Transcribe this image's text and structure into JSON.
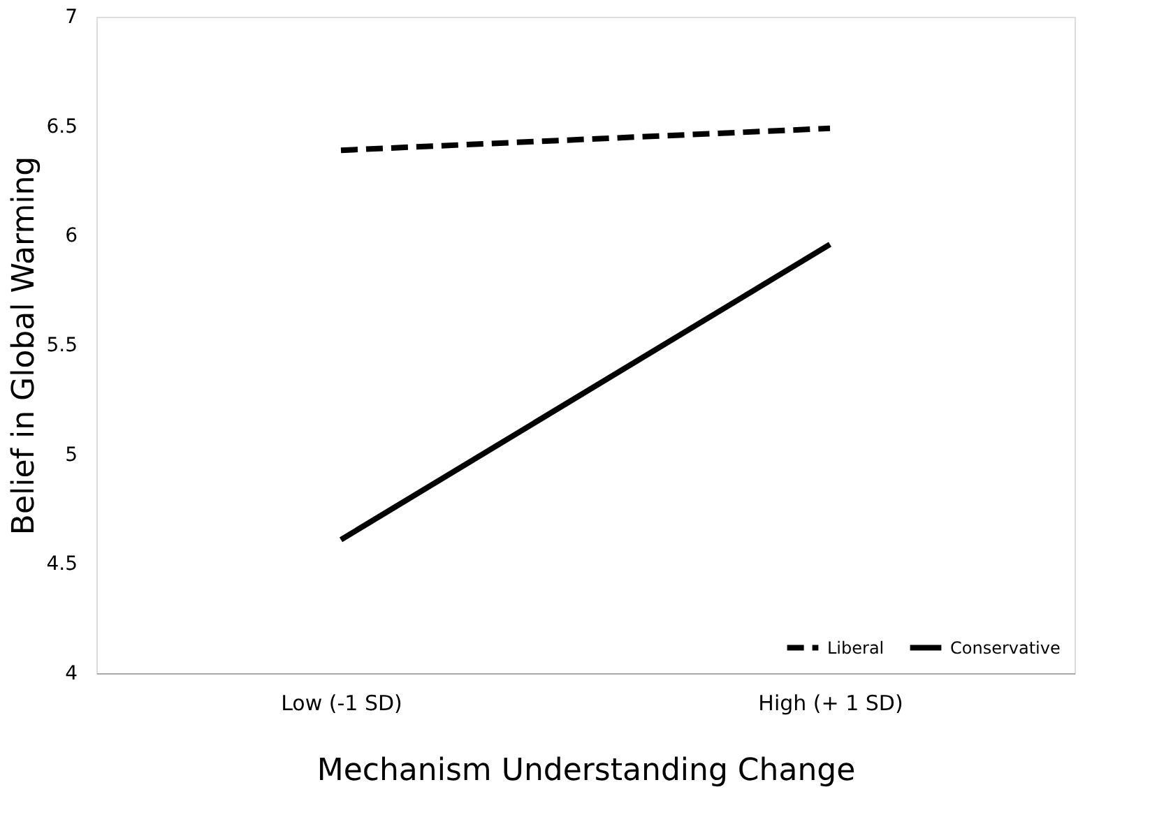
{
  "chart_data": {
    "type": "line",
    "xlabel": "Mechanism Understanding Change",
    "ylabel": "Belief in Global Warming",
    "categories": [
      "Low (-1 SD)",
      "High (+ 1 SD)"
    ],
    "series": [
      {
        "name": "Liberal",
        "color": "#000000",
        "line_style": "dashed",
        "values": [
          6.39,
          6.49
        ]
      },
      {
        "name": "Conservative",
        "color": "#000000",
        "line_style": "solid",
        "values": [
          4.61,
          5.96
        ]
      }
    ],
    "ylim": [
      4,
      7
    ],
    "yticks": [
      4,
      4.5,
      5,
      5.5,
      6,
      6.5,
      7
    ],
    "grid": false,
    "legend": "bottom right",
    "marker": "none"
  }
}
